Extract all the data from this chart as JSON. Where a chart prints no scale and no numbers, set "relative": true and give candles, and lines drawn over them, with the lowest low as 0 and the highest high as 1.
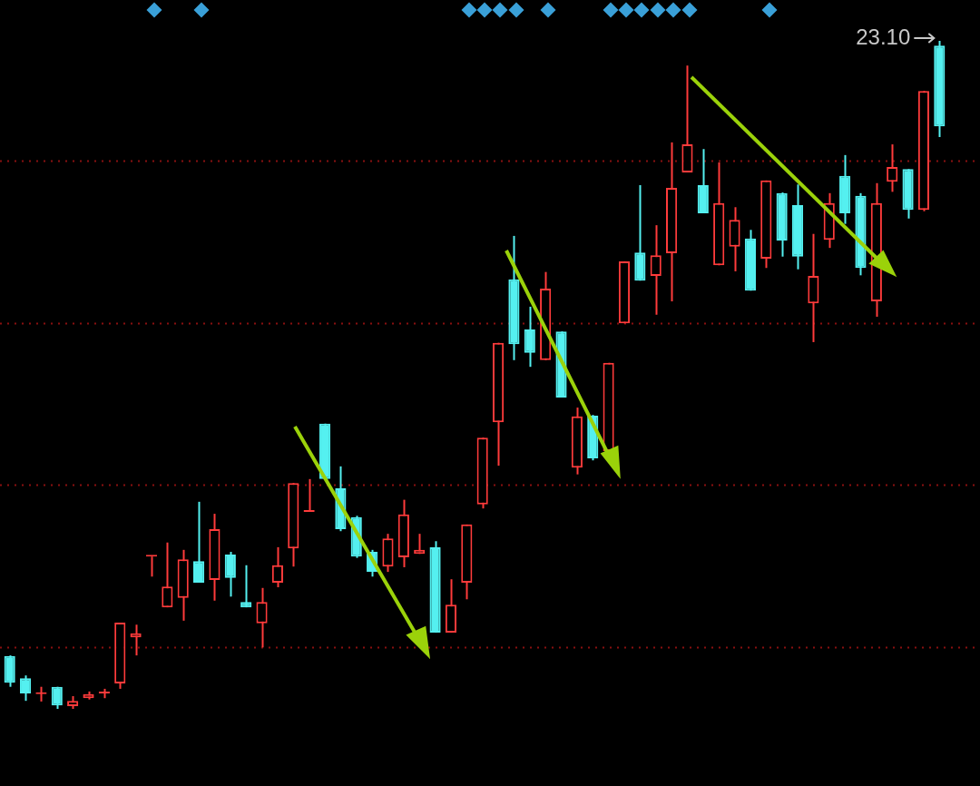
{
  "chart_data": {
    "type": "candlestick",
    "relative": true,
    "categories": [
      null,
      null,
      null,
      null,
      null,
      null,
      null,
      null,
      null,
      null,
      null,
      null,
      null,
      null,
      null,
      null,
      null,
      null,
      null,
      null,
      null,
      null,
      null,
      null,
      null,
      null,
      null,
      null,
      null,
      null,
      null,
      null,
      null,
      null,
      null,
      null,
      null,
      null,
      null,
      null,
      null,
      null,
      null,
      null,
      null,
      null,
      null,
      null,
      null,
      null,
      null,
      null,
      null,
      null,
      null,
      null,
      null,
      null,
      null,
      null
    ],
    "annotations": [
      "23.10"
    ],
    "ref_lines": [
      {
        "axis": "y",
        "value": 0.821,
        "color": "#8a1010",
        "line_style": "dotted"
      },
      {
        "axis": "y",
        "value": 0.577,
        "color": "#8a1010",
        "line_style": "dotted"
      },
      {
        "axis": "y",
        "value": 0.336,
        "color": "#8a1010",
        "line_style": "dotted"
      },
      {
        "axis": "y",
        "value": 0.092,
        "color": "#8a1010",
        "line_style": "dotted"
      }
    ],
    "ohlc": [
      [
        0.079,
        0.08,
        0.033,
        0.039
      ],
      [
        0.046,
        0.05,
        0.012,
        0.023
      ],
      [
        0.022,
        0.033,
        0.011,
        0.024
      ],
      [
        0.033,
        0.033,
        0,
        0.005
      ],
      [
        0.004,
        0.019,
        0,
        0.012
      ],
      [
        0.016,
        0.026,
        0.014,
        0.022
      ],
      [
        0.023,
        0.03,
        0.016,
        0.024
      ],
      [
        0.038,
        0.129,
        0.03,
        0.129
      ],
      [
        0.107,
        0.126,
        0.08,
        0.113
      ],
      [
        0.228,
        0.228,
        0.198,
        0.228
      ],
      [
        0.152,
        0.249,
        0.152,
        0.183
      ],
      [
        0.166,
        0.238,
        0.132,
        0.224
      ],
      [
        0.221,
        0.31,
        0.189,
        0.189
      ],
      [
        0.193,
        0.292,
        0.162,
        0.269
      ],
      [
        0.231,
        0.235,
        0.168,
        0.196
      ],
      [
        0.16,
        0.215,
        0.152,
        0.152
      ],
      [
        0.128,
        0.181,
        0.092,
        0.16
      ],
      [
        0.189,
        0.242,
        0.182,
        0.215
      ],
      [
        0.24,
        0.338,
        0.213,
        0.338
      ],
      [
        0.295,
        0.344,
        0.295,
        0.295
      ],
      [
        0.427,
        0.427,
        0.344,
        0.344
      ],
      [
        0.33,
        0.363,
        0.266,
        0.269
      ],
      [
        0.287,
        0.289,
        0.226,
        0.228
      ],
      [
        0.235,
        0.238,
        0.198,
        0.205
      ],
      [
        0.213,
        0.262,
        0.205,
        0.255
      ],
      [
        0.227,
        0.313,
        0.212,
        0.291
      ],
      [
        0.232,
        0.262,
        0.232,
        0.238
      ],
      [
        0.242,
        0.251,
        0.114,
        0.114
      ],
      [
        0.114,
        0.194,
        0.114,
        0.156
      ],
      [
        0.189,
        0.276,
        0.164,
        0.276
      ],
      [
        0.306,
        0.406,
        0.3,
        0.406
      ],
      [
        0.429,
        0.548,
        0.364,
        0.548
      ],
      [
        0.643,
        0.708,
        0.522,
        0.546
      ],
      [
        0.568,
        0.602,
        0.512,
        0.533
      ],
      [
        0.522,
        0.654,
        0.522,
        0.629
      ],
      [
        0.565,
        0.565,
        0.466,
        0.466
      ],
      [
        0.361,
        0.451,
        0.351,
        0.438
      ],
      [
        0.439,
        0.44,
        0.372,
        0.375
      ],
      [
        0.386,
        0.518,
        0.386,
        0.518
      ],
      [
        0.577,
        0.67,
        0.577,
        0.67
      ],
      [
        0.683,
        0.784,
        0.641,
        0.641
      ],
      [
        0.648,
        0.724,
        0.59,
        0.679
      ],
      [
        0.682,
        0.848,
        0.61,
        0.78
      ],
      [
        0.803,
        0.963,
        0.803,
        0.845
      ],
      [
        0.784,
        0.838,
        0.742,
        0.742
      ],
      [
        0.664,
        0.818,
        0.664,
        0.757
      ],
      [
        0.692,
        0.751,
        0.655,
        0.732
      ],
      [
        0.704,
        0.717,
        0.626,
        0.626
      ],
      [
        0.674,
        0.791,
        0.66,
        0.791
      ],
      [
        0.772,
        0.773,
        0.677,
        0.701
      ],
      [
        0.754,
        0.785,
        0.658,
        0.677
      ],
      [
        0.607,
        0.711,
        0.549,
        0.648
      ],
      [
        0.702,
        0.772,
        0.69,
        0.757
      ],
      [
        0.798,
        0.829,
        0.726,
        0.742
      ],
      [
        0.768,
        0.772,
        0.649,
        0.66
      ],
      [
        0.61,
        0.787,
        0.587,
        0.757
      ],
      [
        0.789,
        0.845,
        0.774,
        0.811
      ],
      [
        0.808,
        0.808,
        0.734,
        0.747
      ],
      [
        0.747,
        0.925,
        0.745,
        0.925
      ],
      [
        0.993,
        1,
        0.856,
        0.872
      ]
    ]
  }
}
